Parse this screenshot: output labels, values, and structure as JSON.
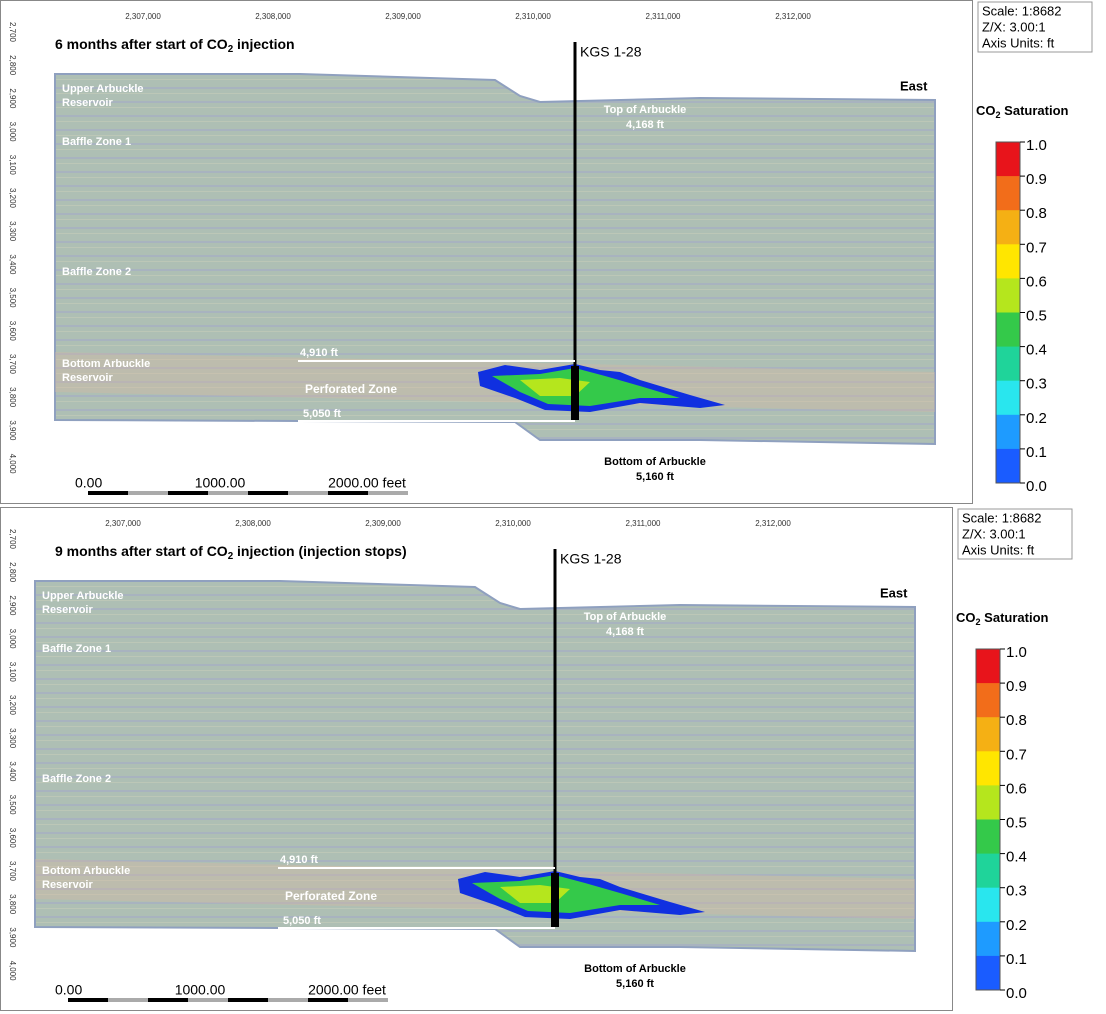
{
  "panels": [
    {
      "title": {
        "pre": "6 months after start of CO",
        "sub": "2",
        "post": " injection"
      }
    },
    {
      "title": {
        "pre": "9 months after start of CO",
        "sub": "2",
        "post": " injection (injection stops)"
      }
    }
  ],
  "common": {
    "x_axis_labels": [
      "2,307,000",
      "2,308,000",
      "2,309,000",
      "2,310,000",
      "2,311,000",
      "2,312,000"
    ],
    "y_axis_labels": [
      "2,700",
      "2,800",
      "2,900",
      "3,000",
      "3,100",
      "3,200",
      "3,300",
      "3,400",
      "3,500",
      "3,600",
      "3,700",
      "3,800",
      "3,900",
      "4,000"
    ],
    "well": "KGS 1-28",
    "direction": "East",
    "zones": {
      "upper_1": "Upper Arbuckle",
      "upper_2": "Reservoir",
      "baffle_1": "Baffle Zone 1",
      "baffle_2": "Baffle Zone 2",
      "bottom_1": "Bottom Arbuckle",
      "bottom_2": "Reservoir",
      "perforated": "Perforated Zone"
    },
    "top_of_arbuckle": {
      "label": "Top of Arbuckle",
      "depth": "4,168 ft"
    },
    "bottom_of_arbuckle": {
      "label": "Bottom of Arbuckle",
      "depth": "5,160 ft"
    },
    "perf_top": "4,910 ft",
    "perf_bottom": "5,050 ft",
    "scale_bar": [
      "0.00",
      "1000.00",
      "2000.00 feet"
    ],
    "info": [
      "Scale: 1:8682",
      "Z/X: 3.00:1",
      "Axis Units: ft"
    ],
    "colorbar": {
      "title": {
        "pre": "CO",
        "sub": "2",
        "post": " Saturation"
      },
      "labels": [
        "1.0",
        "0.9",
        "0.8",
        "0.7",
        "0.6",
        "0.5",
        "0.4",
        "0.3",
        "0.2",
        "0.1",
        "0.0"
      ]
    }
  }
}
